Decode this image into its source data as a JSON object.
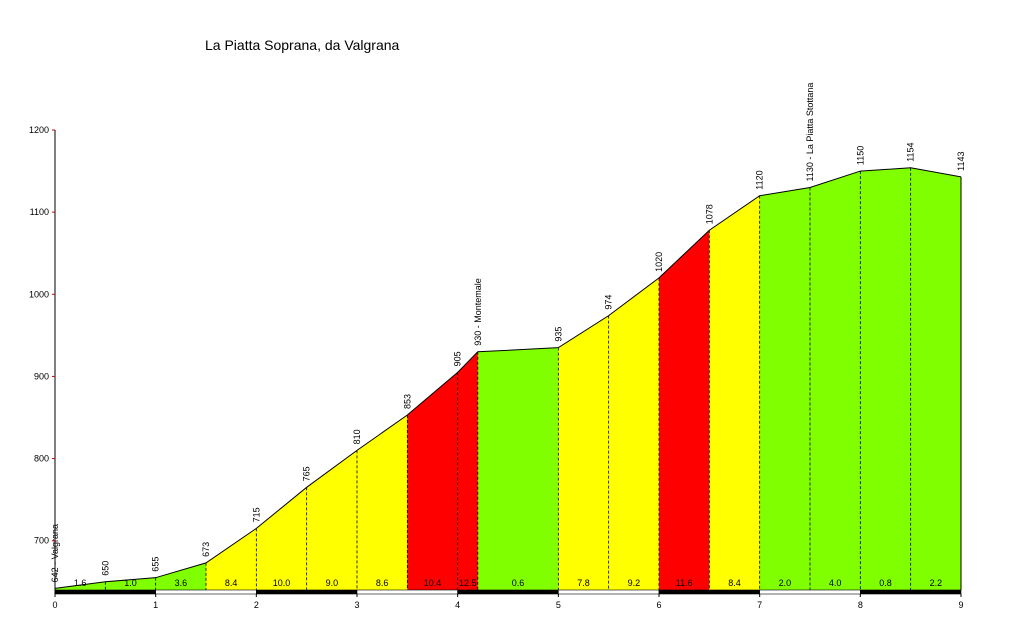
{
  "chart_data": {
    "type": "area",
    "title": "La Piatta Soprana, da Valgrana",
    "xlabel": "",
    "ylabel": "",
    "xlim": [
      0,
      9
    ],
    "ylim": [
      630,
      1200
    ],
    "x_ticks": [
      "0",
      "1",
      "2",
      "3",
      "4",
      "5",
      "6",
      "7",
      "8",
      "9"
    ],
    "y_ticks": [
      "700",
      "800",
      "900",
      "1000",
      "1100",
      "1200"
    ],
    "grid": false,
    "points": [
      {
        "x": 0.0,
        "y": 642,
        "label": "642 - Valgrana"
      },
      {
        "x": 0.5,
        "y": 650,
        "label": "650"
      },
      {
        "x": 1.0,
        "y": 655,
        "label": "655"
      },
      {
        "x": 1.5,
        "y": 673,
        "label": "673"
      },
      {
        "x": 2.0,
        "y": 715,
        "label": "715"
      },
      {
        "x": 2.5,
        "y": 765,
        "label": "765"
      },
      {
        "x": 3.0,
        "y": 810,
        "label": "810"
      },
      {
        "x": 3.5,
        "y": 853,
        "label": "853"
      },
      {
        "x": 4.0,
        "y": 905,
        "label": "905"
      },
      {
        "x": 4.2,
        "y": 930,
        "label": "930 - Montemale"
      },
      {
        "x": 5.0,
        "y": 935,
        "label": "935"
      },
      {
        "x": 5.5,
        "y": 974,
        "label": "974"
      },
      {
        "x": 6.0,
        "y": 1020,
        "label": "1020"
      },
      {
        "x": 6.5,
        "y": 1078,
        "label": "1078"
      },
      {
        "x": 7.0,
        "y": 1120,
        "label": "1120"
      },
      {
        "x": 7.5,
        "y": 1130,
        "label": "1130 - La Piatta Stottana"
      },
      {
        "x": 8.0,
        "y": 1150,
        "label": "1150"
      },
      {
        "x": 8.5,
        "y": 1154,
        "label": "1154"
      },
      {
        "x": 9.0,
        "y": 1143,
        "label": "1143"
      }
    ],
    "segments": [
      {
        "x0": 0.0,
        "x1": 0.5,
        "gradient": "1.6",
        "color": "#80ff00"
      },
      {
        "x0": 0.5,
        "x1": 1.0,
        "gradient": "1.0",
        "color": "#80ff00"
      },
      {
        "x0": 1.0,
        "x1": 1.5,
        "gradient": "3.6",
        "color": "#80ff00"
      },
      {
        "x0": 1.5,
        "x1": 2.0,
        "gradient": "8.4",
        "color": "#ffff00"
      },
      {
        "x0": 2.0,
        "x1": 2.5,
        "gradient": "10.0",
        "color": "#ffff00"
      },
      {
        "x0": 2.5,
        "x1": 3.0,
        "gradient": "9.0",
        "color": "#ffff00"
      },
      {
        "x0": 3.0,
        "x1": 3.5,
        "gradient": "8.6",
        "color": "#ffff00"
      },
      {
        "x0": 3.5,
        "x1": 4.0,
        "gradient": "10.4",
        "color": "#ff0000"
      },
      {
        "x0": 4.0,
        "x1": 4.2,
        "gradient": "12.5",
        "color": "#ff0000"
      },
      {
        "x0": 4.2,
        "x1": 5.0,
        "gradient": "0.6",
        "color": "#80ff00"
      },
      {
        "x0": 5.0,
        "x1": 5.5,
        "gradient": "7.8",
        "color": "#ffff00"
      },
      {
        "x0": 5.5,
        "x1": 6.0,
        "gradient": "9.2",
        "color": "#ffff00"
      },
      {
        "x0": 6.0,
        "x1": 6.5,
        "gradient": "11.6",
        "color": "#ff0000"
      },
      {
        "x0": 6.5,
        "x1": 7.0,
        "gradient": "8.4",
        "color": "#ffff00"
      },
      {
        "x0": 7.0,
        "x1": 7.5,
        "gradient": "2.0",
        "color": "#80ff00"
      },
      {
        "x0": 7.5,
        "x1": 8.0,
        "gradient": "4.0",
        "color": "#80ff00"
      },
      {
        "x0": 8.0,
        "x1": 8.5,
        "gradient": "0.8",
        "color": "#80ff00"
      },
      {
        "x0": 8.5,
        "x1": 9.0,
        "gradient": "2.2",
        "color": "#80ff00"
      }
    ],
    "colors": {
      "easy": "#80ff00",
      "medium": "#ffff00",
      "hard": "#ff0000",
      "axis": "#000000",
      "y_tick_mark": "#cc0000"
    }
  }
}
